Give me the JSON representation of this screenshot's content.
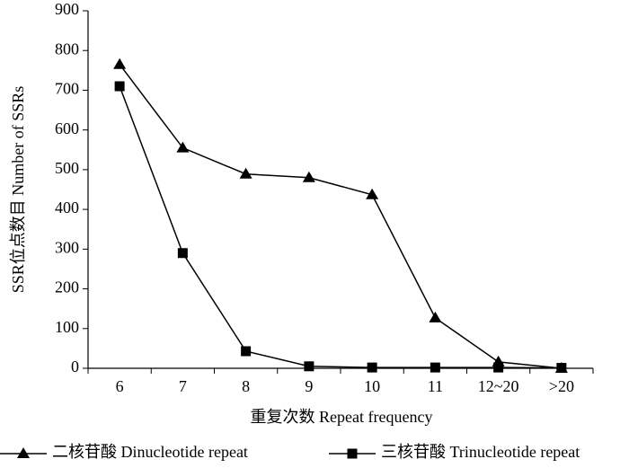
{
  "chart_data": {
    "type": "line",
    "y_label": "SSR位点数目 Number of SSRs",
    "x_label": "重复次数 Repeat frequency",
    "categories": [
      "6",
      "7",
      "8",
      "9",
      "10",
      "11",
      "12~20",
      ">20"
    ],
    "series": [
      {
        "name": "二核苷酸 Dinucleotide repeat",
        "color": "#000000",
        "marker": "triangle",
        "values": [
          765,
          555,
          489,
          480,
          437,
          127,
          16,
          0
        ]
      },
      {
        "name": "三核苷酸 Trinucleotide repeat",
        "color": "#000000",
        "marker": "square",
        "values": [
          710,
          290,
          43,
          5,
          2,
          2,
          2,
          1
        ]
      }
    ],
    "ylim": [
      0,
      900
    ],
    "yticks": [
      0,
      100,
      200,
      300,
      400,
      500,
      600,
      700,
      800,
      900
    ],
    "grid": false
  }
}
